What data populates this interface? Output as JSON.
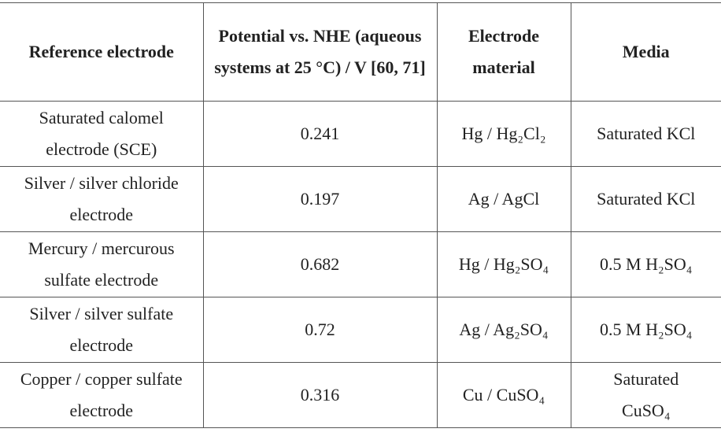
{
  "table": {
    "header": [
      "Reference electrode",
      "Potential vs. NHE (aqueous systems at 25 °C) / V [60, 71]",
      "Electrode material",
      "Media"
    ],
    "rows": [
      [
        "Saturated calomel electrode (SCE)",
        "0.241",
        "Hg / Hg₂Cl₂",
        "Saturated KCl"
      ],
      [
        "Silver / silver chloride electrode",
        "0.197",
        "Ag / AgCl",
        "Saturated KCl"
      ],
      [
        "Mercury / mercurous sulfate electrode",
        "0.682",
        "Hg / Hg₂SO₄",
        "0.5 M H₂SO₄"
      ],
      [
        "Silver / silver sulfate electrode",
        "0.72",
        "Ag / Ag₂SO₄",
        "0.5 M H₂SO₄"
      ],
      [
        "Copper / copper sulfate electrode",
        "0.316",
        "Cu / CuSO₄",
        "Saturated CuSO₄"
      ]
    ]
  }
}
